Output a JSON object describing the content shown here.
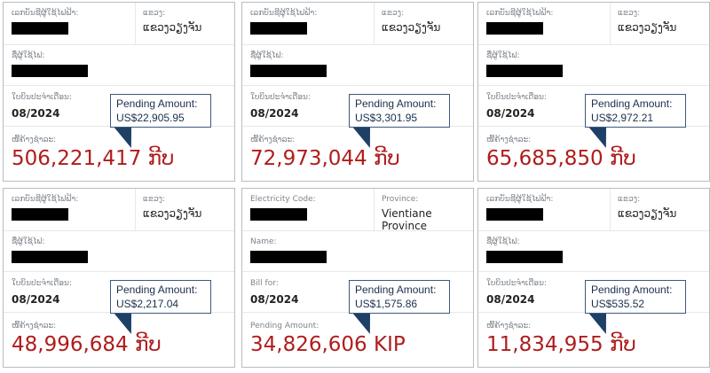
{
  "cards": [
    {
      "code_label": "ເລກບັນຊີຜູ້ໃຊ້ໄຟຟ້າ:",
      "province_label": "ແຂວງ:",
      "province": "ແຂວງວຽງຈັນ",
      "name_label": "ຊື່ຜູ້ໃຊ້ໄຟ:",
      "bill_label": "ໃບບິນປະຈຳເດືອນ:",
      "bill_period": "08/2024",
      "pending_label": "ໜີ້ຄ້າງຊຳລະ:",
      "amount": "506,221,417 ກີບ",
      "callout_title": "Pending Amount:",
      "callout_usd": "US$22,905.95"
    },
    {
      "code_label": "ເລກບັນຊີຜູ້ໃຊ້ໄຟຟ້າ:",
      "province_label": "ແຂວງ:",
      "province": "ແຂວງວຽງຈັນ",
      "name_label": "ຊື່ຜູ້ໃຊ້ໄຟ:",
      "bill_label": "ໃບບິນປະຈຳເດືອນ:",
      "bill_period": "08/2024",
      "pending_label": "ໜີ້ຄ້າງຊຳລະ:",
      "amount": "72,973,044 ກີບ",
      "callout_title": "Pending Amount:",
      "callout_usd": "US$3,301.95"
    },
    {
      "code_label": "ເລກບັນຊີຜູ້ໃຊ້ໄຟຟ້າ:",
      "province_label": "ແຂວງ:",
      "province": "ແຂວງວຽງຈັນ",
      "name_label": "ຊື່ຜູ້ໃຊ້ໄຟ:",
      "bill_label": "ໃບບິນປະຈຳເດືອນ:",
      "bill_period": "08/2024",
      "pending_label": "ໜີ້ຄ້າງຊຳລະ:",
      "amount": "65,685,850 ກີບ",
      "callout_title": "Pending Amount:",
      "callout_usd": "US$2,972.21"
    },
    {
      "code_label": "ເລກບັນຊີຜູ້ໃຊ້ໄຟຟ້າ:",
      "province_label": "ແຂວງ:",
      "province": "ແຂວງວຽງຈັນ",
      "name_label": "ຊື່ຜູ້ໃຊ້ໄຟ:",
      "bill_label": "ໃບບິນປະຈຳເດືອນ:",
      "bill_period": "08/2024",
      "pending_label": "ໜີ້ຄ້າງຊຳລະ:",
      "amount": "48,996,684 ກີບ",
      "callout_title": "Pending Amount:",
      "callout_usd": "US$2,217.04"
    },
    {
      "code_label": "Electricity Code:",
      "province_label": "Province:",
      "province": "Vientiane Province",
      "name_label": "Name:",
      "bill_label": "Bill for:",
      "bill_period": "08/2024",
      "pending_label": "Pending Amount:",
      "amount": "34,826,606 KIP",
      "callout_title": "Pending Amount:",
      "callout_usd": "US$1,575.86"
    },
    {
      "code_label": "ເລກບັນຊີຜູ້ໃຊ້ໄຟຟ້າ:",
      "province_label": "ແຂວງ:",
      "province": "ແຂວງວຽງຈັນ",
      "name_label": "ຊື່ຜູ້ໃຊ້ໄຟ:",
      "bill_label": "ໃບບິນປະຈຳເດືອນ:",
      "bill_period": "08/2024",
      "pending_label": "ໜີ້ຄ້າງຊຳລະ:",
      "amount": "11,834,955 ກີບ",
      "callout_title": "Pending Amount:",
      "callout_usd": "US$535.52"
    }
  ],
  "colors": {
    "amount": "#b01c1c",
    "callout_border": "#3c5a7e",
    "callout_text": "#1a2f4e",
    "redaction": "#000000"
  }
}
